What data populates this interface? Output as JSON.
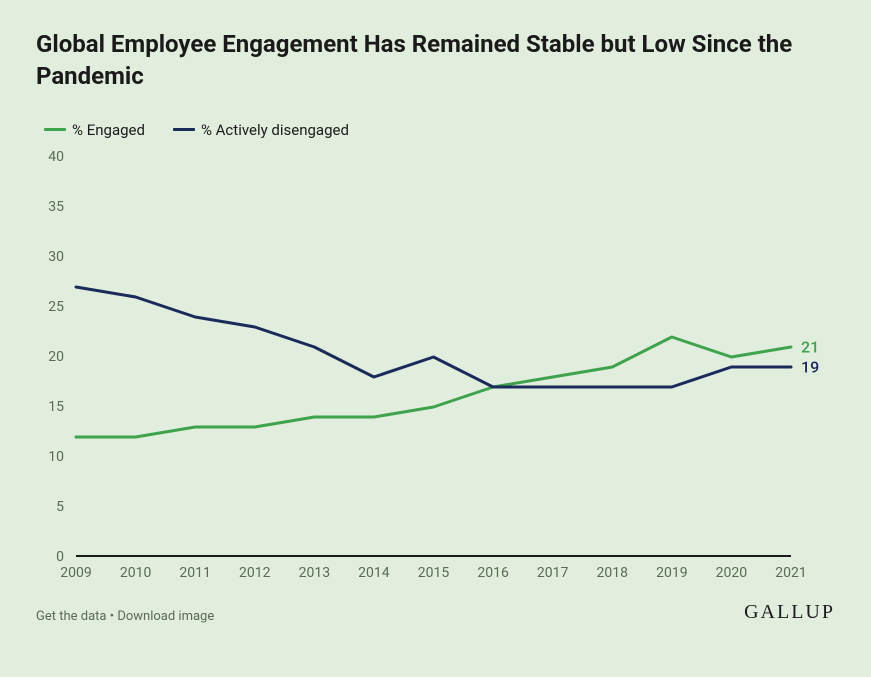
{
  "chart": {
    "type": "line",
    "title": "Global Employee Engagement Has Remained Stable but Low Since the Pandemic",
    "background_color": "#e1eddd",
    "title_color": "#1a1a1a",
    "title_fontsize": 24,
    "axis_label_color": "#5a6b52",
    "axis_label_fontsize": 14,
    "baseline_color": "#1a1a1a",
    "line_width": 3,
    "x": {
      "categories": [
        "2009",
        "2010",
        "2011",
        "2012",
        "2013",
        "2014",
        "2015",
        "2016",
        "2017",
        "2018",
        "2019",
        "2020",
        "2021"
      ]
    },
    "y": {
      "min": 0,
      "max": 40,
      "tick_step": 5,
      "ticks": [
        0,
        5,
        10,
        15,
        20,
        25,
        30,
        35,
        40
      ]
    },
    "series": [
      {
        "name": "% Engaged",
        "color": "#3fa34d",
        "values": [
          12,
          12,
          13,
          13,
          14,
          14,
          15,
          17,
          18,
          19,
          22,
          20,
          21
        ],
        "end_label": "21"
      },
      {
        "name": "% Actively disengaged",
        "color": "#1b2a5b",
        "values": [
          27,
          26,
          24,
          23,
          21,
          18,
          20,
          17,
          17,
          17,
          17,
          19,
          19
        ],
        "end_label": "19"
      }
    ]
  },
  "footer": {
    "link1": "Get the data",
    "sep": " • ",
    "link2": "Download image",
    "brand": "GALLUP"
  }
}
